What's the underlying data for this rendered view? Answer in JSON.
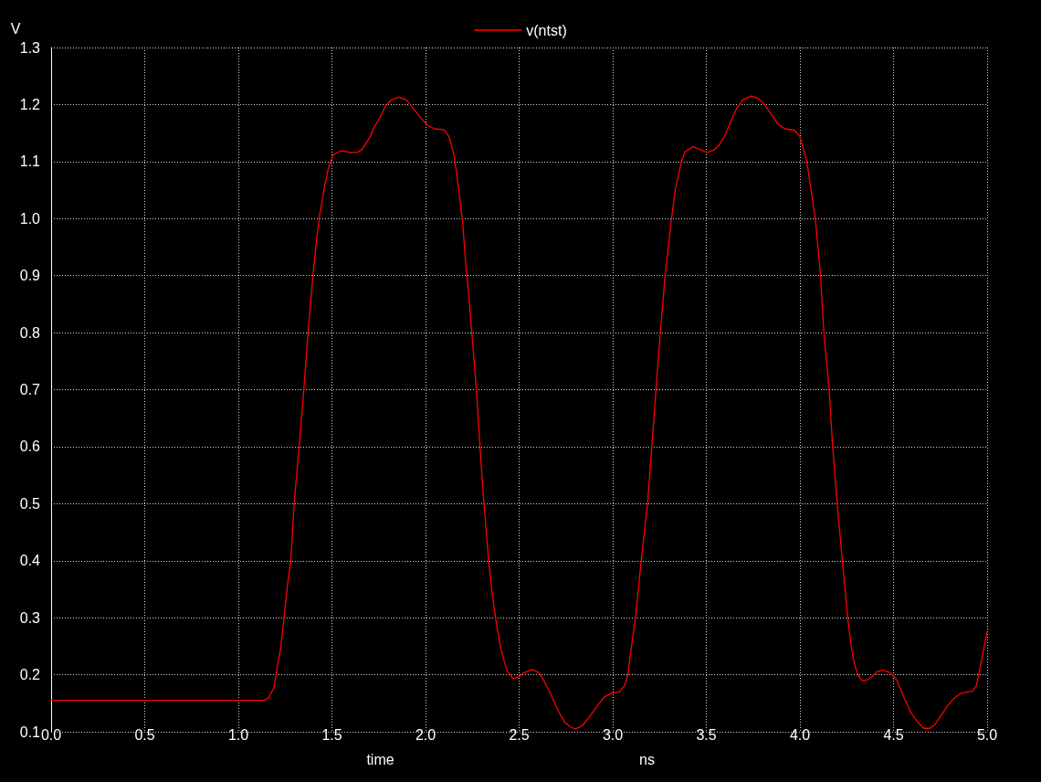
{
  "chart_data": {
    "type": "line",
    "xlabel": "time",
    "ylabel": "V",
    "annotations": [
      "ns"
    ],
    "legend": "top",
    "grid": true,
    "marker": "none",
    "line_style": "solid",
    "xlim": [
      0,
      5
    ],
    "ylim": [
      0.1,
      1.3
    ],
    "xticks": [
      {
        "value": 0,
        "label": "0.0"
      },
      0.5,
      {
        "value": 1,
        "label": "1.0"
      },
      1.5,
      {
        "value": 2,
        "label": "2.0"
      },
      2.5,
      {
        "value": 3,
        "label": "3.0"
      },
      3.5,
      {
        "value": 4,
        "label": "4.0"
      },
      4.5,
      {
        "value": 5,
        "label": "5.0"
      }
    ],
    "yticks": [
      0.1,
      0.2,
      0.3,
      0.4,
      0.5,
      0.6,
      0.7,
      0.8,
      0.9,
      {
        "value": 1,
        "label": "1.0"
      },
      1.1,
      1.2,
      1.3
    ],
    "x": [
      0,
      1.137,
      1.16,
      1.19,
      1.206,
      1.226,
      1.244,
      1.263,
      1.28,
      1.288,
      1.298,
      1.325,
      1.35,
      1.372,
      1.387,
      1.398,
      1.418,
      1.434,
      1.462,
      1.483,
      1.507,
      1.548,
      1.597,
      1.637,
      1.662,
      1.702,
      1.727,
      1.759,
      1.787,
      1.816,
      1.857,
      1.898,
      1.935,
      1.971,
      2.011,
      2.052,
      2.098,
      2.125,
      2.15,
      2.166,
      2.182,
      2.198,
      2.215,
      2.231,
      2.247,
      2.272,
      2.291,
      2.312,
      2.337,
      2.354,
      2.374,
      2.402,
      2.434,
      2.467,
      2.491,
      2.524,
      2.569,
      2.605,
      2.637,
      2.67,
      2.71,
      2.743,
      2.776,
      2.8,
      2.836,
      2.873,
      2.914,
      2.955,
      2.995,
      3.036,
      3.063,
      3.081,
      3.1,
      3.122,
      3.152,
      3.186,
      3.209,
      3.231,
      3.254,
      3.28,
      3.314,
      3.335,
      3.367,
      3.385,
      3.429,
      3.459,
      3.504,
      3.54,
      3.567,
      3.597,
      3.629,
      3.662,
      3.694,
      3.74,
      3.776,
      3.808,
      3.849,
      3.881,
      3.922,
      3.971,
      4.0,
      4.037,
      4.082,
      4.11,
      4.128,
      4.156,
      4.175,
      4.199,
      4.227,
      4.255,
      4.274,
      4.292,
      4.31,
      4.33,
      4.355,
      4.385,
      4.41,
      4.442,
      4.483,
      4.515,
      4.556,
      4.589,
      4.621,
      4.662,
      4.694,
      4.719,
      4.751,
      4.792,
      4.824,
      4.857,
      4.898,
      4.922,
      4.943,
      4.963,
      4.979,
      5.0
    ],
    "series": [
      {
        "name": "v(ntst)",
        "color": "#ff0000",
        "values": [
          0.155,
          0.155,
          0.159,
          0.177,
          0.209,
          0.246,
          0.3,
          0.358,
          0.4,
          0.443,
          0.5,
          0.6,
          0.7,
          0.8,
          0.856,
          0.898,
          0.963,
          1.005,
          1.059,
          1.091,
          1.112,
          1.119,
          1.116,
          1.116,
          1.122,
          1.142,
          1.161,
          1.179,
          1.198,
          1.208,
          1.213,
          1.208,
          1.193,
          1.178,
          1.163,
          1.157,
          1.156,
          1.144,
          1.115,
          1.08,
          1.037,
          0.995,
          0.92,
          0.866,
          0.8,
          0.699,
          0.599,
          0.5,
          0.4,
          0.347,
          0.3,
          0.246,
          0.208,
          0.193,
          0.195,
          0.203,
          0.209,
          0.204,
          0.187,
          0.165,
          0.136,
          0.117,
          0.108,
          0.105,
          0.11,
          0.125,
          0.144,
          0.161,
          0.168,
          0.17,
          0.181,
          0.2,
          0.25,
          0.3,
          0.4,
          0.5,
          0.6,
          0.7,
          0.8,
          0.9,
          1.0,
          1.052,
          1.1,
          1.117,
          1.126,
          1.122,
          1.116,
          1.12,
          1.128,
          1.144,
          1.169,
          1.193,
          1.208,
          1.215,
          1.211,
          1.201,
          1.182,
          1.166,
          1.157,
          1.155,
          1.144,
          1.1,
          1.0,
          0.9,
          0.8,
          0.7,
          0.6,
          0.5,
          0.4,
          0.3,
          0.25,
          0.218,
          0.2,
          0.19,
          0.19,
          0.197,
          0.205,
          0.208,
          0.204,
          0.192,
          0.16,
          0.136,
          0.12,
          0.106,
          0.106,
          0.112,
          0.127,
          0.147,
          0.159,
          0.167,
          0.17,
          0.171,
          0.181,
          0.213,
          0.24,
          0.275
        ]
      }
    ]
  }
}
